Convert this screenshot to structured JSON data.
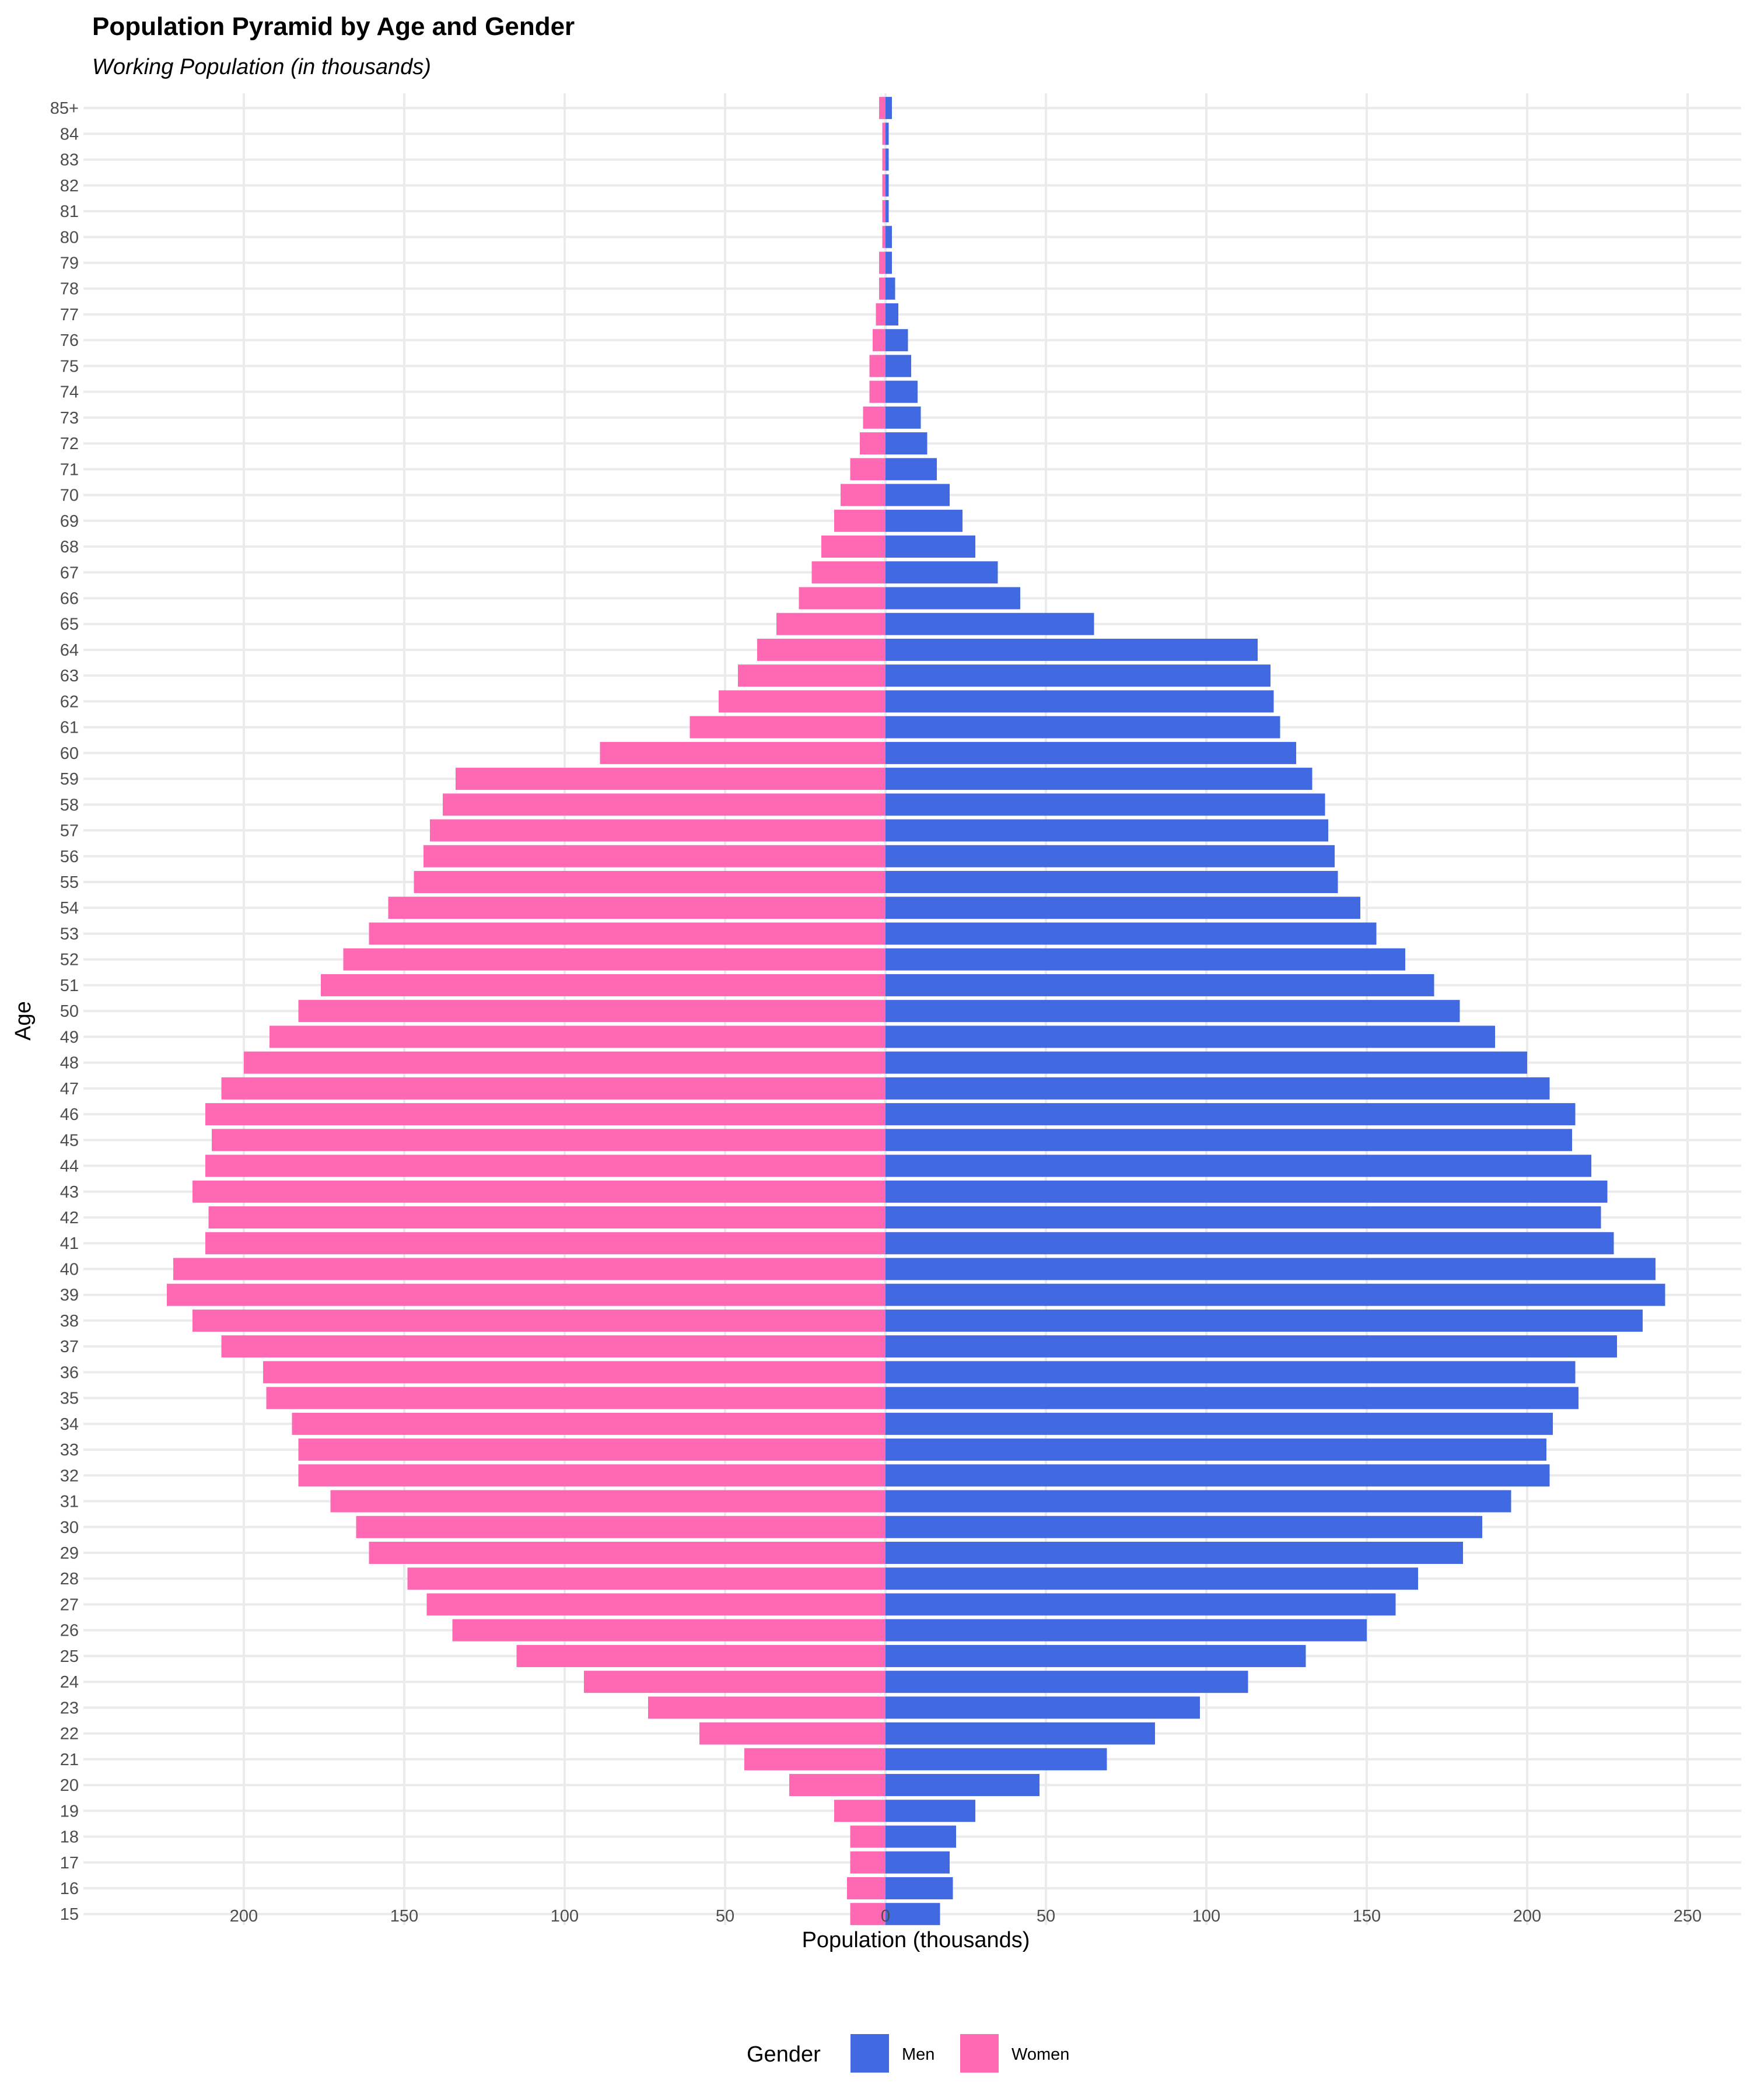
{
  "chart_data": {
    "type": "bar",
    "orientation": "horizontal-pyramid",
    "title": "Population Pyramid by Age and Gender",
    "subtitle": "Working Population (in thousands)",
    "xlabel": "Population (thousands)",
    "ylabel": "Age",
    "xlim": [
      -223,
      250
    ],
    "x_ticks": [
      -200,
      -150,
      -100,
      -50,
      0,
      50,
      100,
      150,
      200,
      250
    ],
    "x_tick_labels": [
      "200",
      "150",
      "100",
      "50",
      "0",
      "50",
      "100",
      "150",
      "200",
      "250"
    ],
    "grid": true,
    "legend_position": "bottom",
    "legend_title": "Gender",
    "categories": [
      "15",
      "16",
      "17",
      "18",
      "19",
      "20",
      "21",
      "22",
      "23",
      "24",
      "25",
      "26",
      "27",
      "28",
      "29",
      "30",
      "31",
      "32",
      "33",
      "34",
      "35",
      "36",
      "37",
      "38",
      "39",
      "40",
      "41",
      "42",
      "43",
      "44",
      "45",
      "46",
      "47",
      "48",
      "49",
      "50",
      "51",
      "52",
      "53",
      "54",
      "55",
      "56",
      "57",
      "58",
      "59",
      "60",
      "61",
      "62",
      "63",
      "64",
      "65",
      "66",
      "67",
      "68",
      "69",
      "70",
      "71",
      "72",
      "73",
      "74",
      "75",
      "76",
      "77",
      "78",
      "79",
      "80",
      "81",
      "82",
      "83",
      "84",
      "85+"
    ],
    "series": [
      {
        "name": "Men",
        "color": "#4169E1",
        "values": [
          17,
          21,
          20,
          22,
          28,
          48,
          69,
          84,
          98,
          113,
          131,
          150,
          159,
          166,
          180,
          186,
          195,
          207,
          206,
          208,
          216,
          215,
          228,
          236,
          243,
          240,
          227,
          223,
          225,
          220,
          214,
          215,
          207,
          200,
          190,
          179,
          171,
          162,
          153,
          148,
          141,
          140,
          138,
          137,
          133,
          128,
          123,
          121,
          120,
          116,
          65,
          42,
          35,
          28,
          24,
          20,
          16,
          13,
          11,
          10,
          8,
          7,
          4,
          3,
          2,
          2,
          1,
          1,
          1,
          1,
          2
        ]
      },
      {
        "name": "Women",
        "color": "#FF69B4",
        "values": [
          11,
          12,
          11,
          11,
          16,
          30,
          44,
          58,
          74,
          94,
          115,
          135,
          143,
          149,
          161,
          165,
          173,
          183,
          183,
          185,
          193,
          194,
          207,
          216,
          224,
          222,
          212,
          211,
          216,
          212,
          210,
          212,
          207,
          200,
          192,
          183,
          176,
          169,
          161,
          155,
          147,
          144,
          142,
          138,
          134,
          89,
          61,
          52,
          46,
          40,
          34,
          27,
          23,
          20,
          16,
          14,
          11,
          8,
          7,
          5,
          5,
          4,
          3,
          2,
          2,
          1,
          1,
          1,
          1,
          1,
          2
        ]
      }
    ]
  }
}
